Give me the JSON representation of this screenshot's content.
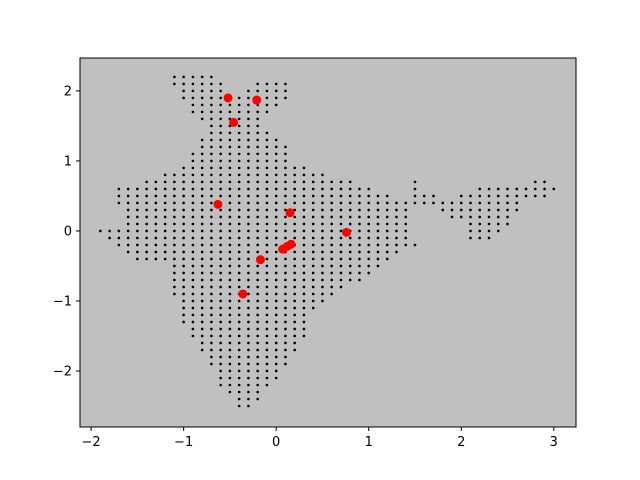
{
  "chart_data": {
    "type": "scatter",
    "title": "",
    "xlabel": "",
    "ylabel": "",
    "xlim": [
      -2.12,
      3.24
    ],
    "ylim": [
      -2.8,
      2.47
    ],
    "xticks": [
      -2,
      -1,
      0,
      1,
      2,
      3
    ],
    "yticks": [
      -2,
      -1,
      0,
      1,
      2
    ],
    "xtick_labels": [
      "−2",
      "−1",
      "0",
      "1",
      "2",
      "3"
    ],
    "ytick_labels": [
      "−2",
      "−1",
      "0",
      "1",
      "2"
    ],
    "background_color": "#c0c0c0",
    "grid": false,
    "legend": false,
    "grid_points": {
      "color": "#000000",
      "step": 0.1,
      "rows": [
        {
          "y": 2.2,
          "x_ranges": [
            [
              -1.1,
              -0.7
            ]
          ]
        },
        {
          "y": 2.1,
          "x_ranges": [
            [
              -1.1,
              -0.6
            ],
            [
              -0.2,
              0.1
            ]
          ]
        },
        {
          "y": 2.0,
          "x_ranges": [
            [
              -1.0,
              -0.6
            ],
            [
              -0.3,
              0.1
            ]
          ]
        },
        {
          "y": 1.9,
          "x_ranges": [
            [
              -1.0,
              0.1
            ]
          ]
        },
        {
          "y": 1.8,
          "x_ranges": [
            [
              -0.9,
              0.0
            ]
          ]
        },
        {
          "y": 1.7,
          "x_ranges": [
            [
              -0.9,
              -0.1
            ]
          ]
        },
        {
          "y": 1.6,
          "x_ranges": [
            [
              -0.8,
              -0.2
            ]
          ]
        },
        {
          "y": 1.5,
          "x_ranges": [
            [
              -0.7,
              -0.2
            ]
          ]
        },
        {
          "y": 1.4,
          "x_ranges": [
            [
              -0.7,
              -0.1
            ]
          ]
        },
        {
          "y": 1.3,
          "x_ranges": [
            [
              -0.8,
              0.0
            ]
          ]
        },
        {
          "y": 1.2,
          "x_ranges": [
            [
              -0.8,
              0.1
            ]
          ]
        },
        {
          "y": 1.1,
          "x_ranges": [
            [
              -0.9,
              0.1
            ]
          ]
        },
        {
          "y": 1.0,
          "x_ranges": [
            [
              -0.9,
              0.1
            ]
          ]
        },
        {
          "y": 0.9,
          "x_ranges": [
            [
              -1.0,
              0.1
            ],
            [
              0.2,
              0.3
            ]
          ]
        },
        {
          "y": 0.8,
          "x_ranges": [
            [
              -1.2,
              0.5
            ]
          ]
        },
        {
          "y": 0.7,
          "x_ranges": [
            [
              -1.4,
              0.8
            ],
            [
              1.5,
              1.5
            ],
            [
              2.8,
              2.9
            ]
          ]
        },
        {
          "y": 0.6,
          "x_ranges": [
            [
              -1.7,
              1.0
            ],
            [
              1.5,
              1.5
            ],
            [
              2.2,
              3.0
            ]
          ]
        },
        {
          "y": 0.5,
          "x_ranges": [
            [
              -1.7,
              1.2
            ],
            [
              1.5,
              1.7
            ],
            [
              2.0,
              2.9
            ]
          ]
        },
        {
          "y": 0.4,
          "x_ranges": [
            [
              -1.7,
              1.4
            ],
            [
              1.5,
              2.6
            ]
          ]
        },
        {
          "y": 0.3,
          "x_ranges": [
            [
              -1.6,
              1.4
            ],
            [
              1.8,
              2.6
            ]
          ]
        },
        {
          "y": 0.2,
          "x_ranges": [
            [
              -1.6,
              1.4
            ],
            [
              1.9,
              2.5
            ]
          ]
        },
        {
          "y": 0.1,
          "x_ranges": [
            [
              -1.6,
              1.4
            ],
            [
              2.1,
              2.5
            ]
          ]
        },
        {
          "y": 0.0,
          "x_ranges": [
            [
              -1.9,
              1.4
            ],
            [
              2.1,
              2.4
            ]
          ]
        },
        {
          "y": -0.1,
          "x_ranges": [
            [
              -1.8,
              1.4
            ],
            [
              2.1,
              2.3
            ]
          ]
        },
        {
          "y": -0.2,
          "x_ranges": [
            [
              -1.7,
              1.5
            ]
          ]
        },
        {
          "y": -0.3,
          "x_ranges": [
            [
              -1.6,
              1.3
            ]
          ]
        },
        {
          "y": -0.4,
          "x_ranges": [
            [
              -1.5,
              1.2
            ]
          ]
        },
        {
          "y": -0.5,
          "x_ranges": [
            [
              -1.1,
              1.1
            ]
          ]
        },
        {
          "y": -0.6,
          "x_ranges": [
            [
              -1.1,
              1.0
            ]
          ]
        },
        {
          "y": -0.7,
          "x_ranges": [
            [
              -1.1,
              0.9
            ]
          ]
        },
        {
          "y": -0.8,
          "x_ranges": [
            [
              -1.1,
              0.7
            ]
          ]
        },
        {
          "y": -0.9,
          "x_ranges": [
            [
              -1.1,
              0.6
            ]
          ]
        },
        {
          "y": -1.0,
          "x_ranges": [
            [
              -1.0,
              0.5
            ]
          ]
        },
        {
          "y": -1.1,
          "x_ranges": [
            [
              -1.0,
              0.4
            ]
          ]
        },
        {
          "y": -1.2,
          "x_ranges": [
            [
              -1.0,
              0.3
            ]
          ]
        },
        {
          "y": -1.3,
          "x_ranges": [
            [
              -1.0,
              0.3
            ]
          ]
        },
        {
          "y": -1.4,
          "x_ranges": [
            [
              -0.9,
              0.3
            ]
          ]
        },
        {
          "y": -1.5,
          "x_ranges": [
            [
              -0.9,
              0.3
            ]
          ]
        },
        {
          "y": -1.6,
          "x_ranges": [
            [
              -0.8,
              0.2
            ]
          ]
        },
        {
          "y": -1.7,
          "x_ranges": [
            [
              -0.8,
              0.2
            ]
          ]
        },
        {
          "y": -1.8,
          "x_ranges": [
            [
              -0.7,
              0.1
            ]
          ]
        },
        {
          "y": -1.9,
          "x_ranges": [
            [
              -0.7,
              0.1
            ]
          ]
        },
        {
          "y": -2.0,
          "x_ranges": [
            [
              -0.6,
              0.0
            ]
          ]
        },
        {
          "y": -2.1,
          "x_ranges": [
            [
              -0.6,
              0.0
            ]
          ]
        },
        {
          "y": -2.2,
          "x_ranges": [
            [
              -0.6,
              -0.1
            ]
          ]
        },
        {
          "y": -2.3,
          "x_ranges": [
            [
              -0.5,
              -0.2
            ]
          ]
        },
        {
          "y": -2.4,
          "x_ranges": [
            [
              -0.4,
              -0.2
            ]
          ]
        },
        {
          "y": -2.5,
          "x_ranges": [
            [
              -0.4,
              -0.3
            ]
          ]
        }
      ]
    },
    "series": [
      {
        "color": "#ff0000",
        "marker": "circle",
        "x": [
          -0.52,
          -0.21,
          -0.46,
          -0.63,
          0.15,
          0.76,
          -0.17,
          0.07,
          0.12,
          0.16,
          -0.36
        ],
        "y": [
          1.9,
          1.87,
          1.55,
          0.38,
          0.26,
          -0.02,
          -0.41,
          -0.26,
          -0.22,
          -0.19,
          -0.9
        ]
      }
    ]
  }
}
